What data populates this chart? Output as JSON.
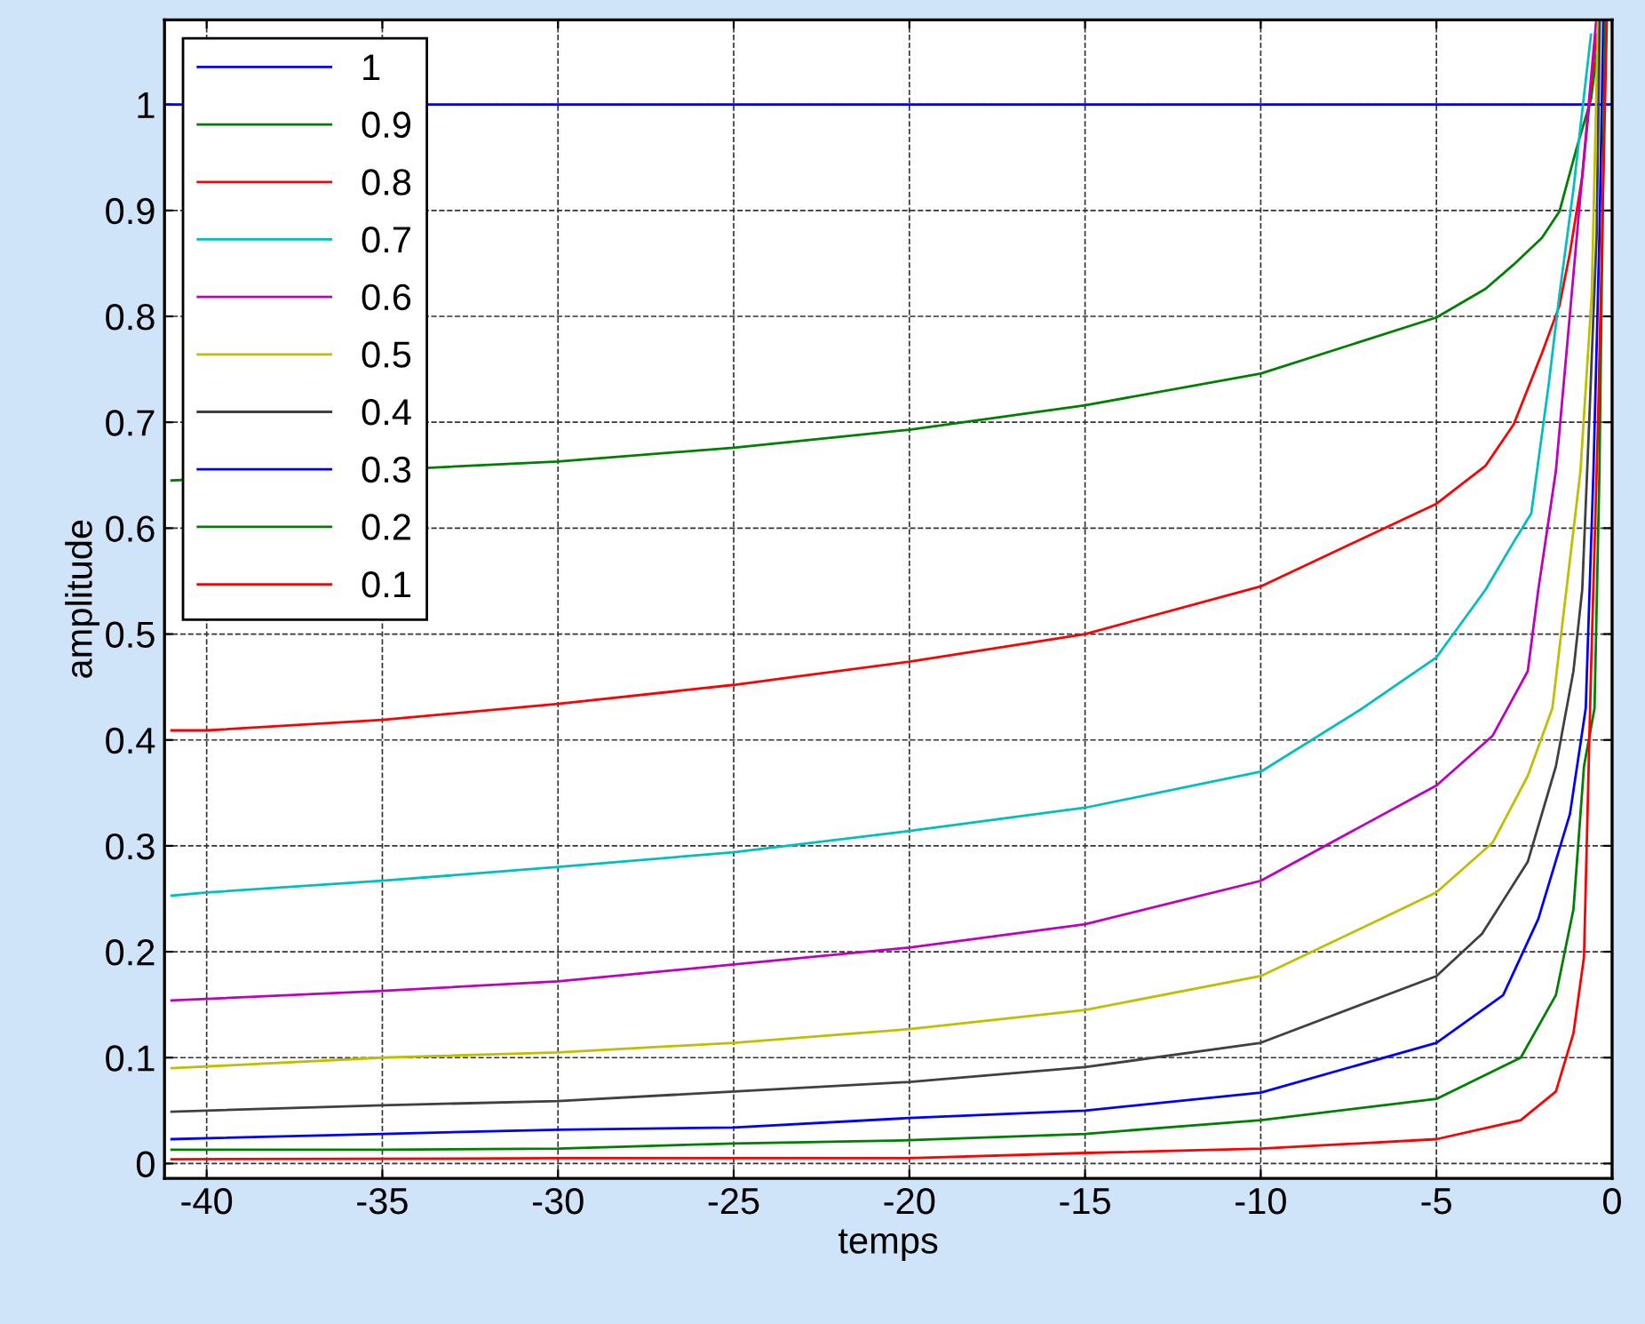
{
  "chart_data": {
    "type": "line",
    "xlabel": "temps",
    "ylabel": "amplitude",
    "xlim": [
      -41.2,
      0
    ],
    "ylim": [
      -0.014,
      1.08
    ],
    "xticks": [
      -40,
      -35,
      -30,
      -25,
      -20,
      -15,
      -10,
      -5,
      0
    ],
    "yticks": [
      0,
      0.1,
      0.2,
      0.3,
      0.4,
      0.5,
      0.6,
      0.7,
      0.8,
      0.9,
      1
    ],
    "grid": true,
    "legend": "top left",
    "line_style": "solid",
    "marker": "none",
    "series": [
      {
        "name": "1",
        "color": "#0000ff",
        "x": [
          -41.2,
          0
        ],
        "values": [
          1,
          1
        ]
      },
      {
        "name": "0.9",
        "color": "#008000",
        "x": [
          -41,
          -30,
          -25,
          -20,
          -15,
          -10,
          -5,
          -3.6,
          -2.8,
          -2,
          -1.5,
          -1,
          -0.6,
          -0.45,
          -0.36
        ],
        "values": [
          0.645,
          0.663,
          0.676,
          0.693,
          0.716,
          0.746,
          0.799,
          0.826,
          0.849,
          0.874,
          0.899,
          0.96,
          1.005,
          1.044,
          1.08
        ]
      },
      {
        "name": "0.8",
        "color": "#ff0000",
        "x": [
          -41,
          -40,
          -35,
          -30,
          -25,
          -20,
          -15,
          -10,
          -5,
          -3.6,
          -2.8,
          -2,
          -1.5,
          -1.2,
          -0.85,
          -0.6,
          -0.45
        ],
        "values": [
          0.409,
          0.409,
          0.419,
          0.434,
          0.452,
          0.474,
          0.5,
          0.545,
          0.623,
          0.659,
          0.698,
          0.765,
          0.81,
          0.86,
          0.932,
          1.016,
          1.066
        ]
      },
      {
        "name": "0.7",
        "color": "#00bfbf",
        "x": [
          -41,
          -40,
          -35,
          -30,
          -25,
          -20,
          -15,
          -10,
          -7.1,
          -5,
          -3.6,
          -2.8,
          -2.3,
          -1.8,
          -1.5,
          -1.1,
          -0.85,
          -0.6
        ],
        "values": [
          0.253,
          0.256,
          0.267,
          0.28,
          0.294,
          0.314,
          0.336,
          0.37,
          0.43,
          0.478,
          0.542,
          0.587,
          0.614,
          0.737,
          0.82,
          0.92,
          0.994,
          1.066
        ]
      },
      {
        "name": "0.6",
        "color": "#bf00bf",
        "x": [
          -41,
          -35,
          -30,
          -25,
          -20,
          -15,
          -10,
          -5,
          -3.4,
          -2.4,
          -2.1,
          -1.6,
          -1.3,
          -1,
          -0.7,
          -0.45
        ],
        "values": [
          0.154,
          0.163,
          0.172,
          0.188,
          0.204,
          0.226,
          0.267,
          0.357,
          0.404,
          0.465,
          0.542,
          0.654,
          0.765,
          0.877,
          0.988,
          1.08
        ]
      },
      {
        "name": "0.5",
        "color": "#bfbf00",
        "x": [
          -41,
          -35,
          -30,
          -25,
          -20,
          -15,
          -10,
          -5,
          -3.4,
          -2.4,
          -1.7,
          -1.3,
          -0.9,
          -0.58,
          -0.4
        ],
        "values": [
          0.09,
          0.1,
          0.105,
          0.114,
          0.127,
          0.145,
          0.177,
          0.256,
          0.303,
          0.366,
          0.43,
          0.542,
          0.654,
          0.82,
          1.08
        ]
      },
      {
        "name": "0.4",
        "color": "#404040",
        "x": [
          -41,
          -35,
          -30,
          -25,
          -20,
          -15,
          -10,
          -5,
          -3.7,
          -2.4,
          -1.6,
          -1.1,
          -0.85,
          -0.64,
          -0.44,
          -0.35
        ],
        "values": [
          0.049,
          0.055,
          0.059,
          0.068,
          0.077,
          0.091,
          0.114,
          0.177,
          0.217,
          0.285,
          0.375,
          0.465,
          0.542,
          0.71,
          0.877,
          1.08
        ]
      },
      {
        "name": "0.3",
        "color": "#0000ff",
        "x": [
          -41,
          -35,
          -30,
          -25,
          -20,
          -15,
          -10,
          -5,
          -3.1,
          -2.1,
          -1.2,
          -0.75,
          -0.53,
          -0.36,
          -0.25
        ],
        "values": [
          0.023,
          0.028,
          0.032,
          0.034,
          0.043,
          0.05,
          0.067,
          0.114,
          0.159,
          0.231,
          0.33,
          0.43,
          0.654,
          0.877,
          1.08
        ]
      },
      {
        "name": "0.2",
        "color": "#008000",
        "x": [
          -41,
          -35,
          -30,
          -25,
          -20,
          -15,
          -10,
          -5,
          -2.6,
          -1.6,
          -1.1,
          -0.8,
          -0.5,
          -0.36,
          -0.2
        ],
        "values": [
          0.013,
          0.013,
          0.014,
          0.019,
          0.022,
          0.028,
          0.041,
          0.061,
          0.1,
          0.159,
          0.24,
          0.375,
          0.43,
          0.654,
          1.08
        ]
      },
      {
        "name": "0.1",
        "color": "#ff0000",
        "x": [
          -41,
          -30,
          -20,
          -15,
          -10,
          -5,
          -2.6,
          -1.6,
          -1.1,
          -0.8,
          -0.6,
          -0.4,
          -0.15
        ],
        "values": [
          0.004,
          0.005,
          0.005,
          0.01,
          0.014,
          0.023,
          0.041,
          0.068,
          0.123,
          0.195,
          0.465,
          0.7,
          1.08
        ]
      }
    ]
  }
}
